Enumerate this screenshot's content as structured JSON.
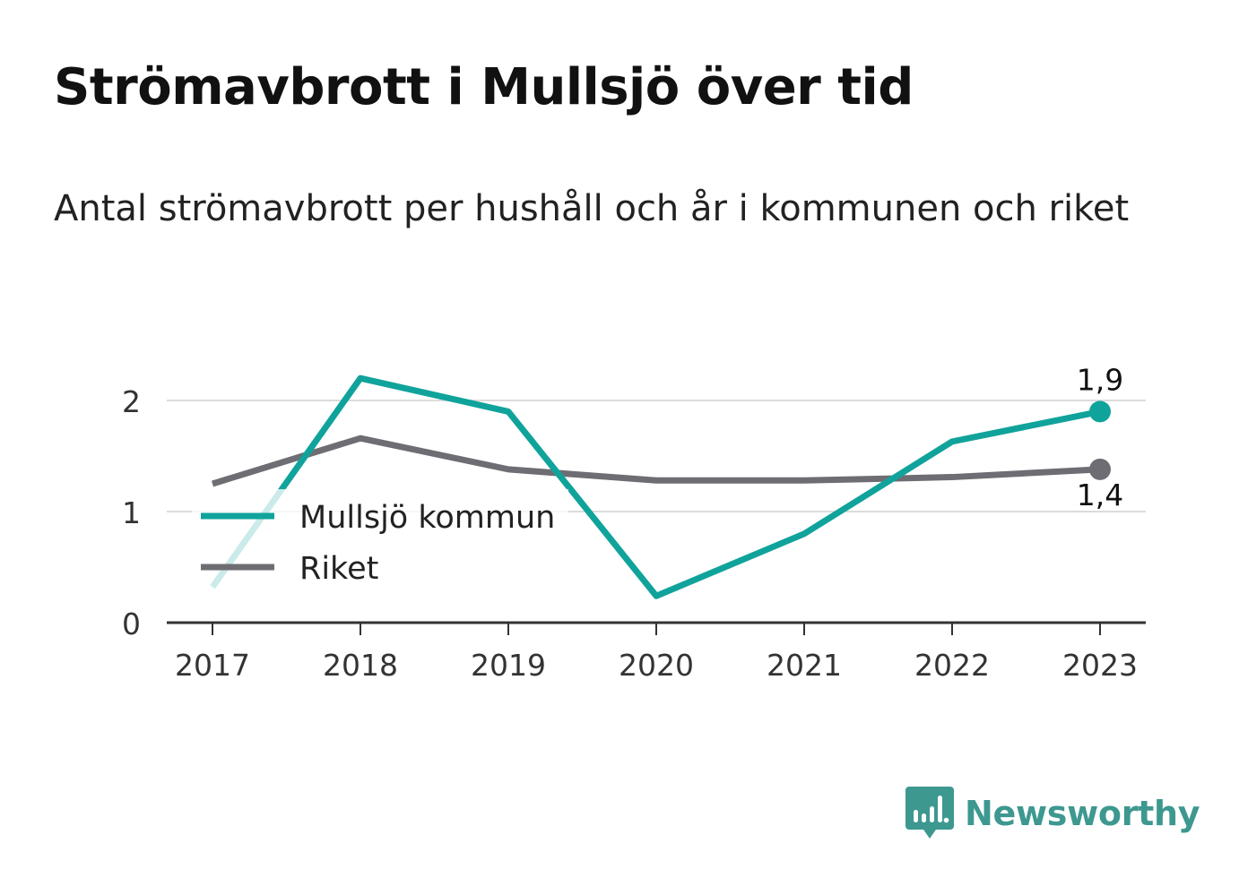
{
  "title": "Strömavbrott i Mullsjö över tid",
  "subtitle": "Antal strömavbrott per hushåll och år i kommunen och riket",
  "brand": "Newsworthy",
  "colors": {
    "mullsjo": "#10a39b",
    "riket": "#6e6d73",
    "grid": "#dcdcdc",
    "axis": "#333333",
    "brand": "#3d9890"
  },
  "chart_data": {
    "type": "line",
    "x": [
      "2017",
      "2018",
      "2019",
      "2020",
      "2021",
      "2022",
      "2023"
    ],
    "ylim": [
      0,
      2.2
    ],
    "yticks": [
      0,
      1,
      2
    ],
    "ytick_labels": [
      "0",
      "1",
      "2"
    ],
    "grid": true,
    "legend_position": "left",
    "series": [
      {
        "name": "Mullsjö kommun",
        "values": [
          0.32,
          2.2,
          1.9,
          0.24,
          0.8,
          1.63,
          1.9
        ],
        "end_label": "1,9"
      },
      {
        "name": "Riket",
        "values": [
          1.25,
          1.66,
          1.38,
          1.28,
          1.28,
          1.31,
          1.38
        ],
        "end_label": "1,4"
      }
    ]
  }
}
